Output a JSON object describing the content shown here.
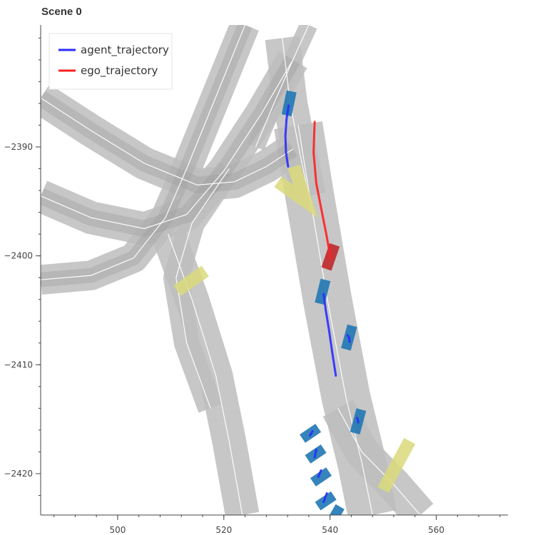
{
  "title": "Scene 0",
  "chart_data": {
    "type": "scatter",
    "title": "Scene 0",
    "xlim": [
      485.5,
      573.5
    ],
    "ylim": [
      -2423.8,
      -2378.8
    ],
    "x_ticks": [
      500,
      520,
      540,
      560
    ],
    "y_ticks": [
      -2390,
      -2400,
      -2410,
      -2420
    ],
    "grid": false,
    "legend_position": "top-left",
    "legend": [
      {
        "label": "agent_trajectory",
        "color": "#2a2bff"
      },
      {
        "label": "ego_trajectory",
        "color": "#ff2020"
      }
    ],
    "colors": {
      "road": "#bdbdbd",
      "road_overlap": "#9a9a9a",
      "lane_line": "#ffffff",
      "crosswalk": "#d9d97a",
      "agent_box": "#1f77b4",
      "ego_box": "#c0282b",
      "axis": "#444444"
    },
    "roads": [
      {
        "name": "upper-left-arc-outer",
        "points": [
          [
            485.5,
            -2385.5
          ],
          [
            495,
            -2388.5
          ],
          [
            505,
            -2391.5
          ],
          [
            515,
            -2393.5
          ],
          [
            522,
            -2393.2
          ],
          [
            528,
            -2391.8
          ],
          [
            533,
            -2390.2
          ]
        ],
        "width": 6.2
      },
      {
        "name": "upper-left-arc-mid",
        "points": [
          [
            485.5,
            -2394.5
          ],
          [
            495,
            -2396.5
          ],
          [
            505,
            -2397.5
          ],
          [
            513,
            -2396.2
          ],
          [
            520,
            -2392.2
          ],
          [
            527,
            -2387
          ],
          [
            533,
            -2382
          ]
        ],
        "width": 6.2
      },
      {
        "name": "upper-left-arc-inner",
        "points": [
          [
            485.5,
            -2402.2
          ],
          [
            495,
            -2401.8
          ],
          [
            503,
            -2400.2
          ],
          [
            509,
            -2396.5
          ],
          [
            513,
            -2392
          ],
          [
            518,
            -2386
          ],
          [
            523,
            -2380
          ],
          [
            524,
            -2378.8
          ]
        ],
        "width": 5.6
      },
      {
        "name": "top-right-connector",
        "points": [
          [
            536,
            -2378.8
          ],
          [
            533,
            -2382
          ],
          [
            529,
            -2386.5
          ],
          [
            526,
            -2390
          ]
        ],
        "width": 3.4
      },
      {
        "name": "left-down-road",
        "points": [
          [
            509.5,
            -2398
          ],
          [
            514,
            -2404
          ],
          [
            518.5,
            -2411
          ],
          [
            521,
            -2417
          ],
          [
            523.5,
            -2423.8
          ]
        ],
        "width": 6.4
      },
      {
        "name": "left-turn-arc",
        "points": [
          [
            521,
            -2392
          ],
          [
            514,
            -2397
          ],
          [
            511,
            -2402
          ],
          [
            513,
            -2408
          ],
          [
            517.5,
            -2414
          ]
        ],
        "width": 4.8
      },
      {
        "name": "main-road",
        "points": [
          [
            534,
            -2388
          ],
          [
            536,
            -2394
          ],
          [
            539.5,
            -2404
          ],
          [
            543,
            -2413
          ],
          [
            546,
            -2419
          ],
          [
            548,
            -2423.8
          ]
        ],
        "width": 9.2
      },
      {
        "name": "main-upper",
        "points": [
          [
            531,
            -2380
          ],
          [
            532.5,
            -2386
          ],
          [
            534.5,
            -2391
          ],
          [
            536,
            -2394.5
          ]
        ],
        "width": 6.5
      },
      {
        "name": "right-lower-branch",
        "points": [
          [
            541.5,
            -2414
          ],
          [
            546,
            -2418
          ],
          [
            552,
            -2421
          ],
          [
            557,
            -2423.8
          ]
        ],
        "width": 6.5
      }
    ],
    "crosswalks": [
      {
        "name": "crosswalk-upper",
        "points": [
          [
            530.2,
            -2393.2
          ],
          [
            535.4,
            -2395
          ],
          [
            533.2,
            -2391.8
          ]
        ]
      },
      {
        "name": "crosswalk-left",
        "points": [
          [
            511.2,
            -2403.2
          ],
          [
            516.5,
            -2401.4
          ],
          [
            513.8,
            -2402.3
          ]
        ]
      },
      {
        "name": "crosswalk-right",
        "points": [
          [
            550,
            -2421.5
          ],
          [
            555,
            -2417
          ]
        ]
      }
    ],
    "agents": [
      {
        "x": 532.3,
        "y": -2386.0,
        "heading": 78,
        "length": 4.6,
        "width": 1.9
      },
      {
        "x": 538.6,
        "y": -2403.3,
        "heading": 76,
        "length": 4.6,
        "width": 1.9
      },
      {
        "x": 543.6,
        "y": -2407.5,
        "heading": 75,
        "length": 4.6,
        "width": 1.9
      },
      {
        "x": 545.3,
        "y": -2415.2,
        "heading": 75,
        "length": 4.6,
        "width": 1.9
      },
      {
        "x": 536.3,
        "y": -2416.3,
        "heading": 34,
        "length": 3.6,
        "width": 1.9
      },
      {
        "x": 537.3,
        "y": -2418.2,
        "heading": 34,
        "length": 3.6,
        "width": 1.9
      },
      {
        "x": 538.3,
        "y": -2420.3,
        "heading": 34,
        "length": 3.6,
        "width": 1.9
      },
      {
        "x": 539.2,
        "y": -2422.5,
        "heading": 34,
        "length": 3.6,
        "width": 1.9
      },
      {
        "x": 541.0,
        "y": -2423.8,
        "heading": 60,
        "length": 3.6,
        "width": 1.9
      }
    ],
    "ego": {
      "x": 540.1,
      "y": -2400.1,
      "heading": 71,
      "length": 4.8,
      "width": 2.0
    },
    "agent_trajectories": [
      {
        "x": [
          532.2,
          531.8,
          531.6,
          531.7,
          532.1
        ],
        "y": [
          -2386.2,
          -2387.5,
          -2389.0,
          -2390.5,
          -2391.8
        ]
      },
      {
        "x": [
          538.8,
          539.2,
          539.8,
          540.4,
          541.1
        ],
        "y": [
          -2403.5,
          -2405.0,
          -2406.8,
          -2408.8,
          -2411.0
        ]
      },
      {
        "x": [
          543.3,
          543.6,
          543.7
        ],
        "y": [
          -2407.3,
          -2407.5,
          -2407.9
        ]
      },
      {
        "x": [
          545.1,
          545.2,
          545.3
        ],
        "y": [
          -2414.9,
          -2415.0,
          -2415.3
        ]
      },
      {
        "x": [
          536.7,
          536.2
        ],
        "y": [
          -2416.1,
          -2416.5
        ]
      },
      {
        "x": [
          537.4,
          537.1
        ],
        "y": [
          -2417.8,
          -2418.5
        ]
      },
      {
        "x": [
          538.3,
          537.8
        ],
        "y": [
          -2419.7,
          -2420.3
        ]
      },
      {
        "x": [
          539.4,
          538.8
        ],
        "y": [
          -2421.8,
          -2422.6
        ]
      }
    ],
    "ego_trajectory": {
      "x": [
        537.1,
        536.9,
        537.4,
        538.4,
        539.3,
        540.1
      ],
      "y": [
        -2387.7,
        -2390.5,
        -2393.3,
        -2395.8,
        -2398.0,
        -2400.2
      ]
    }
  }
}
